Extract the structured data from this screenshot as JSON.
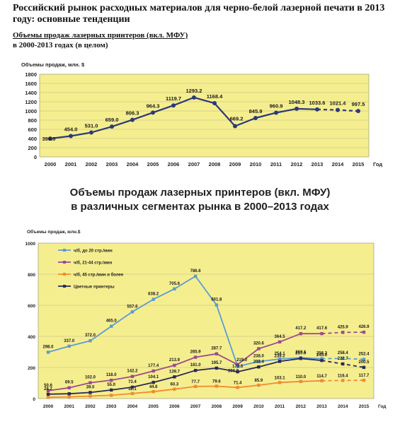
{
  "document": {
    "title": "Российский рынок расходных материалов для черно-белой лазерной печати в 2013 году: основные тенденции",
    "subtitle_line1": "Объемы продаж лазерных принтеров (вкл. МФУ)",
    "subtitle_line2": "в 2000-2013 годах (в целом)",
    "chart2_title_line1": "Объемы продаж лазерных принтеров (вкл. МФУ)",
    "chart2_title_line2": "в различных сегментах рынка в 2000–2013 годах"
  },
  "colors": {
    "plot_bg": "#f5ee8f",
    "line1": "#2b3a78",
    "s_bw20": "#5b9bd5",
    "s_bw21": "#9e4a8a",
    "s_bw45": "#f28a30",
    "s_color": "#2a2a5a"
  },
  "chart_data": [
    {
      "type": "line",
      "ylabel": "Объемы продаж, млн. $",
      "xlabel": "Год",
      "x": [
        "2000",
        "2001",
        "2002",
        "2003",
        "2004",
        "2005",
        "2006",
        "2007",
        "2008",
        "2009",
        "2010",
        "2011",
        "2012",
        "2013",
        "2014",
        "2015"
      ],
      "ylim": [
        0,
        1800
      ],
      "yticks": [
        0,
        200,
        400,
        600,
        800,
        1000,
        1200,
        1400,
        1600,
        1800
      ],
      "grid": true,
      "series": [
        {
          "values": [
            398.0,
            454.0,
            531.0,
            659.0,
            806.3,
            964.3,
            1119.7,
            1293.2,
            1168.4,
            669.2,
            845.9,
            960.9,
            1048.3,
            1033.6,
            1021.4,
            997.5
          ],
          "labels": [
            "398.0",
            "454.0",
            "531.0",
            "659.0",
            "806.3",
            "964.3",
            "1119.7",
            "1293.2",
            "1168.4",
            "669.2",
            "845.9",
            "960.9",
            "1048.3",
            "1033.6",
            "1021.4",
            "997.5"
          ],
          "forecast_from_index": 13
        }
      ]
    },
    {
      "type": "line",
      "ylabel": "Объемы продаж, млн.$",
      "xlabel": "Год",
      "x": [
        "2000",
        "2001",
        "2002",
        "2003",
        "2004",
        "2005",
        "2006",
        "2007",
        "2008",
        "2009",
        "2010",
        "2011",
        "2012",
        "2013",
        "2014",
        "2015"
      ],
      "ylim": [
        0,
        1000
      ],
      "yticks": [
        0,
        200,
        400,
        600,
        800,
        1000
      ],
      "grid": true,
      "legend": "top-left",
      "series": [
        {
          "name": "ч/б, до 20 стр./мин",
          "color_key": "s_bw20",
          "values": [
            298.0,
            337.0,
            372.0,
            465.0,
            557.6,
            638.2,
            705.6,
            786.6,
            601.8,
            206.9,
            238.0,
            254.1,
            263.1,
            256.3,
            258.4,
            252.4
          ],
          "labels": [
            "298.0",
            "337.0",
            "372.0",
            "465.0",
            "557.6",
            "638.2",
            "705.6",
            "786.6",
            "601.8",
            "206.9",
            "238.0",
            "254.1",
            "263.1",
            "256.3",
            "258.4",
            "252.4"
          ],
          "forecast_from_index": 13
        },
        {
          "name": "ч/б, 21-44 стр./мин",
          "color_key": "s_bw21",
          "values": [
            50.6,
            69.5,
            102.0,
            118.0,
            142.2,
            177.4,
            213.9,
            265.9,
            287.7,
            219.0,
            320.6,
            364.5,
            417.2,
            417.6,
            425.9,
            426.9
          ],
          "labels": [
            "50.6",
            "69.5",
            "102.0",
            "118.0",
            "142.2",
            "177.4",
            "213.9",
            "265.9",
            "287.7",
            "219.0",
            "320.6",
            "364.5",
            "417.2",
            "417.6",
            "425.9",
            "426.9"
          ],
          "forecast_from_index": 13
        },
        {
          "name": "ч/б, 45 стр./мин и более",
          "color_key": "s_bw45",
          "values": [
            8.0,
            11.0,
            16.0,
            21.0,
            32.1,
            44.6,
            60.3,
            77.7,
            79.6,
            71.4,
            85.9,
            103.1,
            110.0,
            114.7,
            116.4,
            117.7
          ],
          "labels": [
            "",
            "",
            "",
            "",
            "32.1",
            "44.6",
            "60.3",
            "77.7",
            "79.6",
            "71.4",
            "85.9",
            "103.1",
            "110.0",
            "114.7",
            "116.4",
            "117.7"
          ],
          "forecast_from_index": 13
        },
        {
          "name": "Цветные принтеры",
          "color_key": "s_color",
          "values": [
            28.2,
            31.0,
            39.0,
            55.0,
            73.4,
            104.1,
            139.7,
            181.0,
            195.7,
            172.3,
            203.4,
            239.2,
            257.9,
            245.0,
            222.7,
            200.5
          ],
          "labels": [
            "28.2",
            "",
            "39.0",
            "55.0",
            "73.4",
            "104.1",
            "139.7",
            "181.0",
            "195.7",
            "172.3",
            "203.4",
            "239.2",
            "257.9",
            "245.0",
            "222.7",
            "200.5"
          ],
          "forecast_from_index": 13
        }
      ]
    }
  ]
}
